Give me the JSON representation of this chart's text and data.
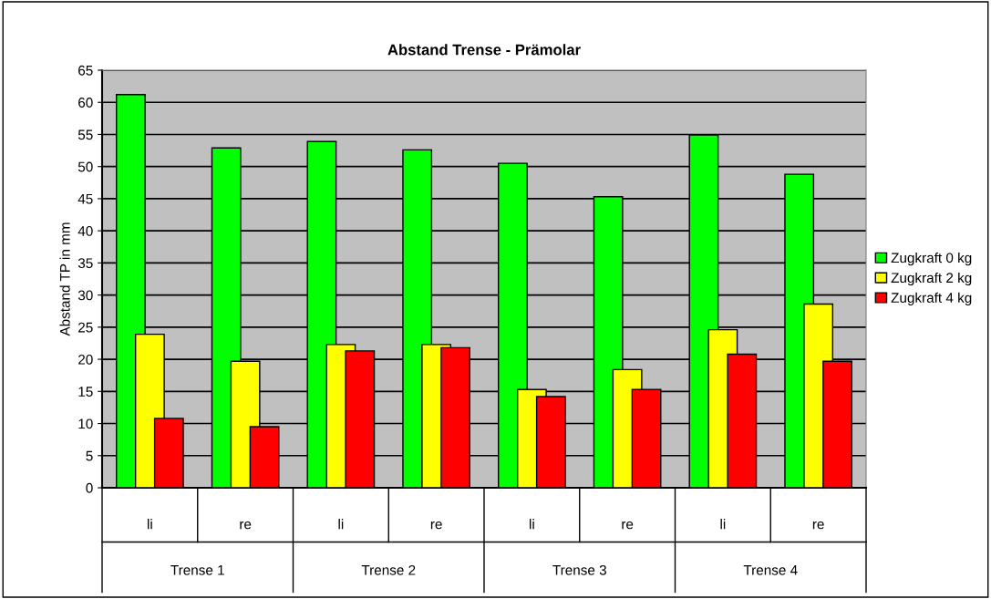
{
  "chart_data": {
    "type": "bar",
    "title": "Abstand Trense - Prämolar",
    "ylabel": "Abstand TP in mm",
    "categories": [
      "li",
      "re",
      "li",
      "re",
      "li",
      "re",
      "li",
      "re"
    ],
    "annotations": [
      "Trense 1",
      "Trense 2",
      "Trense 3",
      "Trense 4"
    ],
    "series": [
      {
        "name": "Zugkraft 0 kg",
        "color": "#00ff00",
        "values": [
          61.2,
          52.9,
          53.9,
          52.6,
          50.5,
          45.3,
          54.9,
          48.8
        ]
      },
      {
        "name": "Zugkraft 2 kg",
        "color": "#ffff00",
        "values": [
          23.9,
          19.7,
          22.3,
          22.3,
          15.3,
          18.4,
          24.6,
          28.6
        ]
      },
      {
        "name": "Zugkraft 4 kg",
        "color": "#ff0000",
        "values": [
          10.8,
          9.5,
          21.3,
          21.8,
          14.2,
          15.3,
          20.8,
          19.7
        ]
      }
    ],
    "ylim": [
      0,
      65
    ],
    "yticks": [
      0,
      5,
      10,
      15,
      20,
      25,
      30,
      35,
      40,
      45,
      50,
      55,
      60,
      65
    ],
    "grid": "y",
    "legend": "right"
  }
}
